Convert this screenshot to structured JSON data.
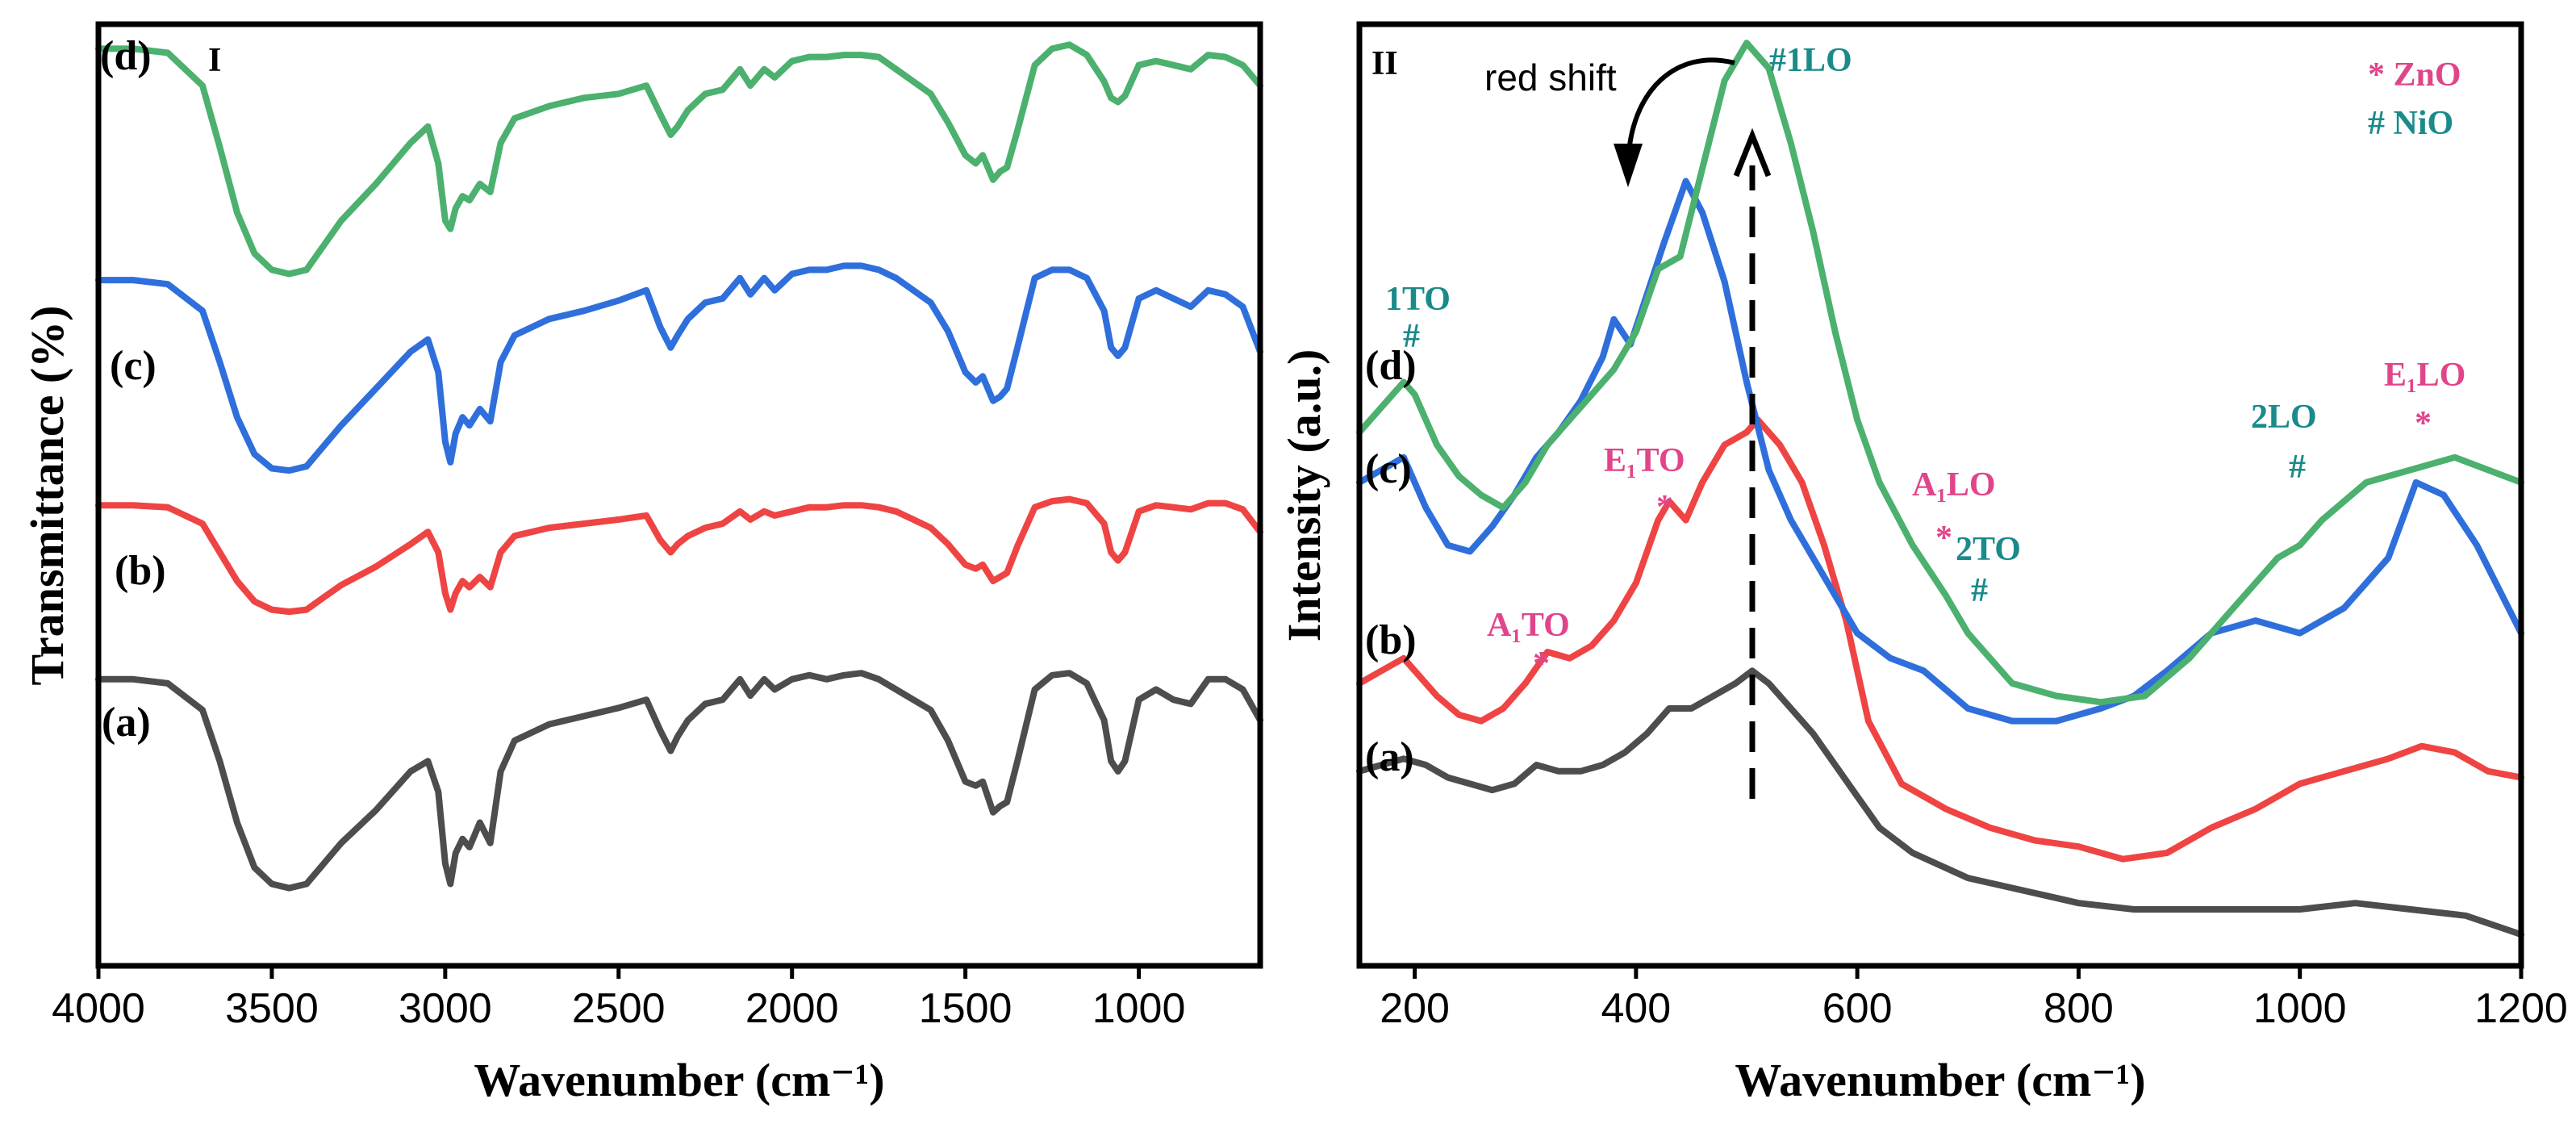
{
  "chart_data": [
    {
      "id": "panel-I",
      "panel_label": "I",
      "type": "line",
      "xlabel": "Wavenumber (cm⁻¹)",
      "ylabel": "Transmittance (%)",
      "xlim": [
        4000,
        650
      ],
      "ylim": [
        -0.4,
        4.2
      ],
      "x_reversed": true,
      "y_tick_labels": false,
      "x_ticks": [
        4000,
        3500,
        3000,
        2500,
        2000,
        1500,
        1000
      ],
      "x_tick_labels": [
        "4000",
        "3500",
        "3000",
        "2500",
        "2000",
        "1500",
        "1000"
      ],
      "series": [
        {
          "name": "(a)",
          "color": "#4d4d4d",
          "x": [
            4000,
            3900,
            3800,
            3700,
            3650,
            3600,
            3550,
            3500,
            3450,
            3400,
            3350,
            3300,
            3200,
            3100,
            3050,
            3020,
            3000,
            2985,
            2970,
            2950,
            2930,
            2900,
            2870,
            2840,
            2800,
            2700,
            2600,
            2500,
            2420,
            2380,
            2350,
            2330,
            2300,
            2250,
            2200,
            2150,
            2120,
            2080,
            2050,
            2000,
            1950,
            1900,
            1850,
            1800,
            1750,
            1700,
            1650,
            1600,
            1550,
            1500,
            1470,
            1450,
            1420,
            1400,
            1380,
            1350,
            1300,
            1250,
            1200,
            1150,
            1100,
            1080,
            1060,
            1040,
            1000,
            950,
            900,
            850,
            800,
            750,
            700,
            650
          ],
          "y": [
            1.0,
            1.0,
            0.98,
            0.85,
            0.6,
            0.3,
            0.08,
            0.0,
            -0.02,
            0.0,
            0.1,
            0.2,
            0.36,
            0.55,
            0.6,
            0.45,
            0.1,
            0.0,
            0.15,
            0.22,
            0.18,
            0.3,
            0.2,
            0.55,
            0.7,
            0.78,
            0.82,
            0.86,
            0.9,
            0.75,
            0.65,
            0.72,
            0.8,
            0.88,
            0.9,
            1.0,
            0.92,
            1.0,
            0.95,
            1.0,
            1.02,
            1.0,
            1.02,
            1.03,
            1.0,
            0.95,
            0.9,
            0.85,
            0.7,
            0.5,
            0.48,
            0.5,
            0.35,
            0.38,
            0.4,
            0.6,
            0.95,
            1.02,
            1.03,
            0.98,
            0.8,
            0.6,
            0.55,
            0.6,
            0.9,
            0.95,
            0.9,
            0.88,
            1.0,
            1.0,
            0.95,
            0.8
          ]
        },
        {
          "name": "(b)",
          "color": "#ef4444",
          "x": [
            4000,
            3900,
            3800,
            3700,
            3650,
            3600,
            3550,
            3500,
            3450,
            3400,
            3350,
            3300,
            3200,
            3100,
            3050,
            3020,
            3000,
            2985,
            2970,
            2950,
            2930,
            2900,
            2870,
            2840,
            2800,
            2700,
            2600,
            2500,
            2420,
            2380,
            2350,
            2330,
            2300,
            2250,
            2200,
            2150,
            2120,
            2080,
            2050,
            2000,
            1950,
            1900,
            1850,
            1800,
            1750,
            1700,
            1650,
            1600,
            1550,
            1500,
            1470,
            1450,
            1420,
            1400,
            1380,
            1350,
            1300,
            1250,
            1200,
            1150,
            1100,
            1080,
            1060,
            1040,
            1000,
            950,
            900,
            850,
            800,
            750,
            700,
            650
          ],
          "y": [
            1.85,
            1.85,
            1.84,
            1.76,
            1.62,
            1.48,
            1.38,
            1.34,
            1.33,
            1.34,
            1.4,
            1.46,
            1.55,
            1.66,
            1.72,
            1.62,
            1.42,
            1.34,
            1.42,
            1.48,
            1.45,
            1.5,
            1.45,
            1.62,
            1.7,
            1.74,
            1.76,
            1.78,
            1.8,
            1.68,
            1.62,
            1.66,
            1.7,
            1.74,
            1.76,
            1.82,
            1.78,
            1.82,
            1.8,
            1.82,
            1.84,
            1.84,
            1.85,
            1.85,
            1.84,
            1.82,
            1.78,
            1.74,
            1.66,
            1.56,
            1.54,
            1.56,
            1.48,
            1.5,
            1.52,
            1.65,
            1.84,
            1.87,
            1.88,
            1.86,
            1.76,
            1.62,
            1.58,
            1.62,
            1.82,
            1.85,
            1.84,
            1.83,
            1.86,
            1.86,
            1.83,
            1.72
          ]
        },
        {
          "name": "(c)",
          "color": "#2f6fdb",
          "x": [
            4000,
            3900,
            3800,
            3700,
            3650,
            3600,
            3550,
            3500,
            3450,
            3400,
            3350,
            3300,
            3200,
            3100,
            3050,
            3020,
            3000,
            2985,
            2970,
            2950,
            2930,
            2900,
            2870,
            2840,
            2800,
            2700,
            2600,
            2500,
            2420,
            2380,
            2350,
            2330,
            2300,
            2250,
            2200,
            2150,
            2120,
            2080,
            2050,
            2000,
            1950,
            1900,
            1850,
            1800,
            1750,
            1700,
            1650,
            1600,
            1550,
            1500,
            1470,
            1450,
            1420,
            1400,
            1380,
            1350,
            1300,
            1250,
            1200,
            1150,
            1100,
            1080,
            1060,
            1040,
            1000,
            950,
            900,
            850,
            800,
            750,
            700,
            650
          ],
          "y": [
            2.95,
            2.95,
            2.93,
            2.8,
            2.55,
            2.28,
            2.1,
            2.03,
            2.02,
            2.04,
            2.14,
            2.24,
            2.42,
            2.6,
            2.66,
            2.5,
            2.16,
            2.06,
            2.2,
            2.28,
            2.24,
            2.32,
            2.26,
            2.55,
            2.68,
            2.76,
            2.8,
            2.85,
            2.9,
            2.72,
            2.62,
            2.68,
            2.76,
            2.84,
            2.86,
            2.96,
            2.88,
            2.96,
            2.9,
            2.98,
            3.0,
            3.0,
            3.02,
            3.02,
            3.0,
            2.96,
            2.9,
            2.84,
            2.7,
            2.5,
            2.45,
            2.48,
            2.36,
            2.38,
            2.42,
            2.62,
            2.96,
            3.0,
            3.0,
            2.96,
            2.8,
            2.62,
            2.58,
            2.62,
            2.86,
            2.9,
            2.86,
            2.82,
            2.9,
            2.88,
            2.82,
            2.6
          ]
        },
        {
          "name": "(d)",
          "color": "#4cb06e",
          "x": [
            4000,
            3900,
            3800,
            3700,
            3650,
            3600,
            3550,
            3500,
            3450,
            3400,
            3350,
            3300,
            3200,
            3100,
            3050,
            3020,
            3000,
            2985,
            2970,
            2950,
            2930,
            2900,
            2870,
            2840,
            2800,
            2700,
            2600,
            2500,
            2420,
            2380,
            2350,
            2330,
            2300,
            2250,
            2200,
            2150,
            2120,
            2080,
            2050,
            2000,
            1950,
            1900,
            1850,
            1800,
            1750,
            1700,
            1650,
            1600,
            1550,
            1500,
            1470,
            1450,
            1420,
            1400,
            1380,
            1350,
            1300,
            1250,
            1200,
            1150,
            1100,
            1080,
            1060,
            1040,
            1000,
            950,
            900,
            850,
            800,
            750,
            700,
            650
          ],
          "y": [
            4.08,
            4.08,
            4.06,
            3.9,
            3.6,
            3.28,
            3.08,
            3.0,
            2.98,
            3.0,
            3.12,
            3.24,
            3.42,
            3.62,
            3.7,
            3.52,
            3.24,
            3.2,
            3.3,
            3.36,
            3.34,
            3.42,
            3.38,
            3.62,
            3.74,
            3.8,
            3.84,
            3.86,
            3.9,
            3.76,
            3.66,
            3.7,
            3.78,
            3.86,
            3.88,
            3.98,
            3.9,
            3.98,
            3.94,
            4.02,
            4.04,
            4.04,
            4.05,
            4.05,
            4.04,
            3.98,
            3.92,
            3.86,
            3.72,
            3.56,
            3.52,
            3.56,
            3.44,
            3.48,
            3.5,
            3.68,
            4.0,
            4.08,
            4.1,
            4.05,
            3.92,
            3.84,
            3.82,
            3.85,
            4.0,
            4.02,
            4.0,
            3.98,
            4.05,
            4.04,
            4.0,
            3.9
          ]
        }
      ],
      "trace_labels": [
        "(a)",
        "(b)",
        "(c)",
        "(d)"
      ]
    },
    {
      "id": "panel-II",
      "panel_label": "II",
      "type": "line",
      "xlabel": "Wavenumber (cm⁻¹)",
      "ylabel": "Intensity (a.u.)",
      "xlim": [
        150,
        1200
      ],
      "ylim": [
        -0.05,
        1.45
      ],
      "y_tick_labels": false,
      "x_ticks": [
        200,
        400,
        600,
        800,
        1000,
        1200
      ],
      "x_tick_labels": [
        "200",
        "400",
        "600",
        "800",
        "1000",
        "1200"
      ],
      "series": [
        {
          "name": "(a)",
          "color": "#4d4d4d",
          "x": [
            150,
            170,
            190,
            210,
            230,
            250,
            270,
            290,
            310,
            330,
            350,
            370,
            390,
            410,
            430,
            450,
            470,
            490,
            505,
            520,
            540,
            560,
            580,
            600,
            620,
            650,
            700,
            750,
            800,
            850,
            900,
            950,
            1000,
            1050,
            1100,
            1150,
            1200
          ],
          "y": [
            0.26,
            0.27,
            0.28,
            0.27,
            0.25,
            0.24,
            0.23,
            0.24,
            0.27,
            0.26,
            0.26,
            0.27,
            0.29,
            0.32,
            0.36,
            0.36,
            0.38,
            0.4,
            0.42,
            0.4,
            0.36,
            0.32,
            0.27,
            0.22,
            0.17,
            0.13,
            0.09,
            0.07,
            0.05,
            0.04,
            0.04,
            0.04,
            0.04,
            0.05,
            0.04,
            0.03,
            0.0
          ]
        },
        {
          "name": "(b)",
          "color": "#ef4444",
          "x": [
            150,
            170,
            190,
            200,
            220,
            240,
            260,
            280,
            300,
            320,
            340,
            360,
            380,
            400,
            420,
            430,
            445,
            460,
            480,
            500,
            510,
            530,
            550,
            570,
            590,
            610,
            640,
            680,
            720,
            760,
            800,
            840,
            880,
            920,
            960,
            1000,
            1040,
            1080,
            1110,
            1140,
            1170,
            1200
          ],
          "y": [
            0.4,
            0.42,
            0.44,
            0.42,
            0.38,
            0.35,
            0.34,
            0.36,
            0.4,
            0.45,
            0.44,
            0.46,
            0.5,
            0.56,
            0.66,
            0.69,
            0.66,
            0.72,
            0.78,
            0.8,
            0.82,
            0.78,
            0.72,
            0.62,
            0.5,
            0.34,
            0.24,
            0.2,
            0.17,
            0.15,
            0.14,
            0.12,
            0.13,
            0.17,
            0.2,
            0.24,
            0.26,
            0.28,
            0.3,
            0.29,
            0.26,
            0.25
          ]
        },
        {
          "name": "(c)",
          "color": "#2f6fdb",
          "x": [
            150,
            170,
            190,
            210,
            230,
            250,
            270,
            290,
            310,
            330,
            350,
            370,
            380,
            395,
            410,
            425,
            445,
            460,
            480,
            500,
            520,
            540,
            560,
            580,
            600,
            630,
            660,
            700,
            740,
            780,
            820,
            850,
            880,
            920,
            960,
            1000,
            1040,
            1080,
            1105,
            1130,
            1160,
            1200
          ],
          "y": [
            0.72,
            0.74,
            0.76,
            0.68,
            0.62,
            0.61,
            0.65,
            0.7,
            0.76,
            0.8,
            0.85,
            0.92,
            0.98,
            0.94,
            1.02,
            1.1,
            1.2,
            1.15,
            1.04,
            0.88,
            0.74,
            0.66,
            0.6,
            0.54,
            0.48,
            0.44,
            0.42,
            0.36,
            0.34,
            0.34,
            0.36,
            0.38,
            0.42,
            0.48,
            0.5,
            0.48,
            0.52,
            0.6,
            0.72,
            0.7,
            0.62,
            0.48
          ]
        },
        {
          "name": "(d)",
          "color": "#4cb06e",
          "x": [
            150,
            170,
            190,
            200,
            220,
            240,
            260,
            280,
            300,
            320,
            340,
            360,
            380,
            400,
            420,
            440,
            460,
            480,
            500,
            520,
            540,
            560,
            580,
            600,
            620,
            650,
            680,
            700,
            740,
            780,
            820,
            860,
            900,
            940,
            980,
            1000,
            1020,
            1060,
            1100,
            1140,
            1170,
            1200
          ],
          "y": [
            0.8,
            0.84,
            0.88,
            0.86,
            0.78,
            0.73,
            0.7,
            0.68,
            0.72,
            0.78,
            0.82,
            0.86,
            0.9,
            0.96,
            1.06,
            1.08,
            1.22,
            1.36,
            1.42,
            1.38,
            1.26,
            1.12,
            0.96,
            0.82,
            0.72,
            0.62,
            0.54,
            0.48,
            0.4,
            0.38,
            0.37,
            0.38,
            0.44,
            0.52,
            0.6,
            0.62,
            0.66,
            0.72,
            0.74,
            0.76,
            0.74,
            0.72
          ]
        }
      ],
      "trace_labels": [
        "(a)",
        "(b)",
        "(c)",
        "(d)"
      ],
      "annotations": {
        "legend": {
          "zno_marker": "*",
          "zno_label": "ZnO",
          "nio_marker": "#",
          "nio_label": "NiO"
        },
        "red_shift": "red shift",
        "peaks": [
          {
            "marker": "#",
            "label": "1TO",
            "color": "#1a8a8a"
          },
          {
            "marker": "*",
            "label": "A₁TO",
            "color": "#e0458a"
          },
          {
            "marker": "*",
            "label": "E₁TO",
            "color": "#e0458a"
          },
          {
            "marker": "#",
            "label": "1LO",
            "color": "#1a8a8a"
          },
          {
            "marker": "*",
            "label": "A₁LO",
            "color": "#e0458a"
          },
          {
            "marker": "#",
            "label": "2TO",
            "color": "#1a8a8a"
          },
          {
            "marker": "#",
            "label": "2LO",
            "color": "#1a8a8a"
          },
          {
            "marker": "*",
            "label": "E₁LO",
            "color": "#e0458a"
          }
        ]
      }
    }
  ],
  "colors": {
    "zno": "#e0458a",
    "nio": "#1a8a8a"
  }
}
